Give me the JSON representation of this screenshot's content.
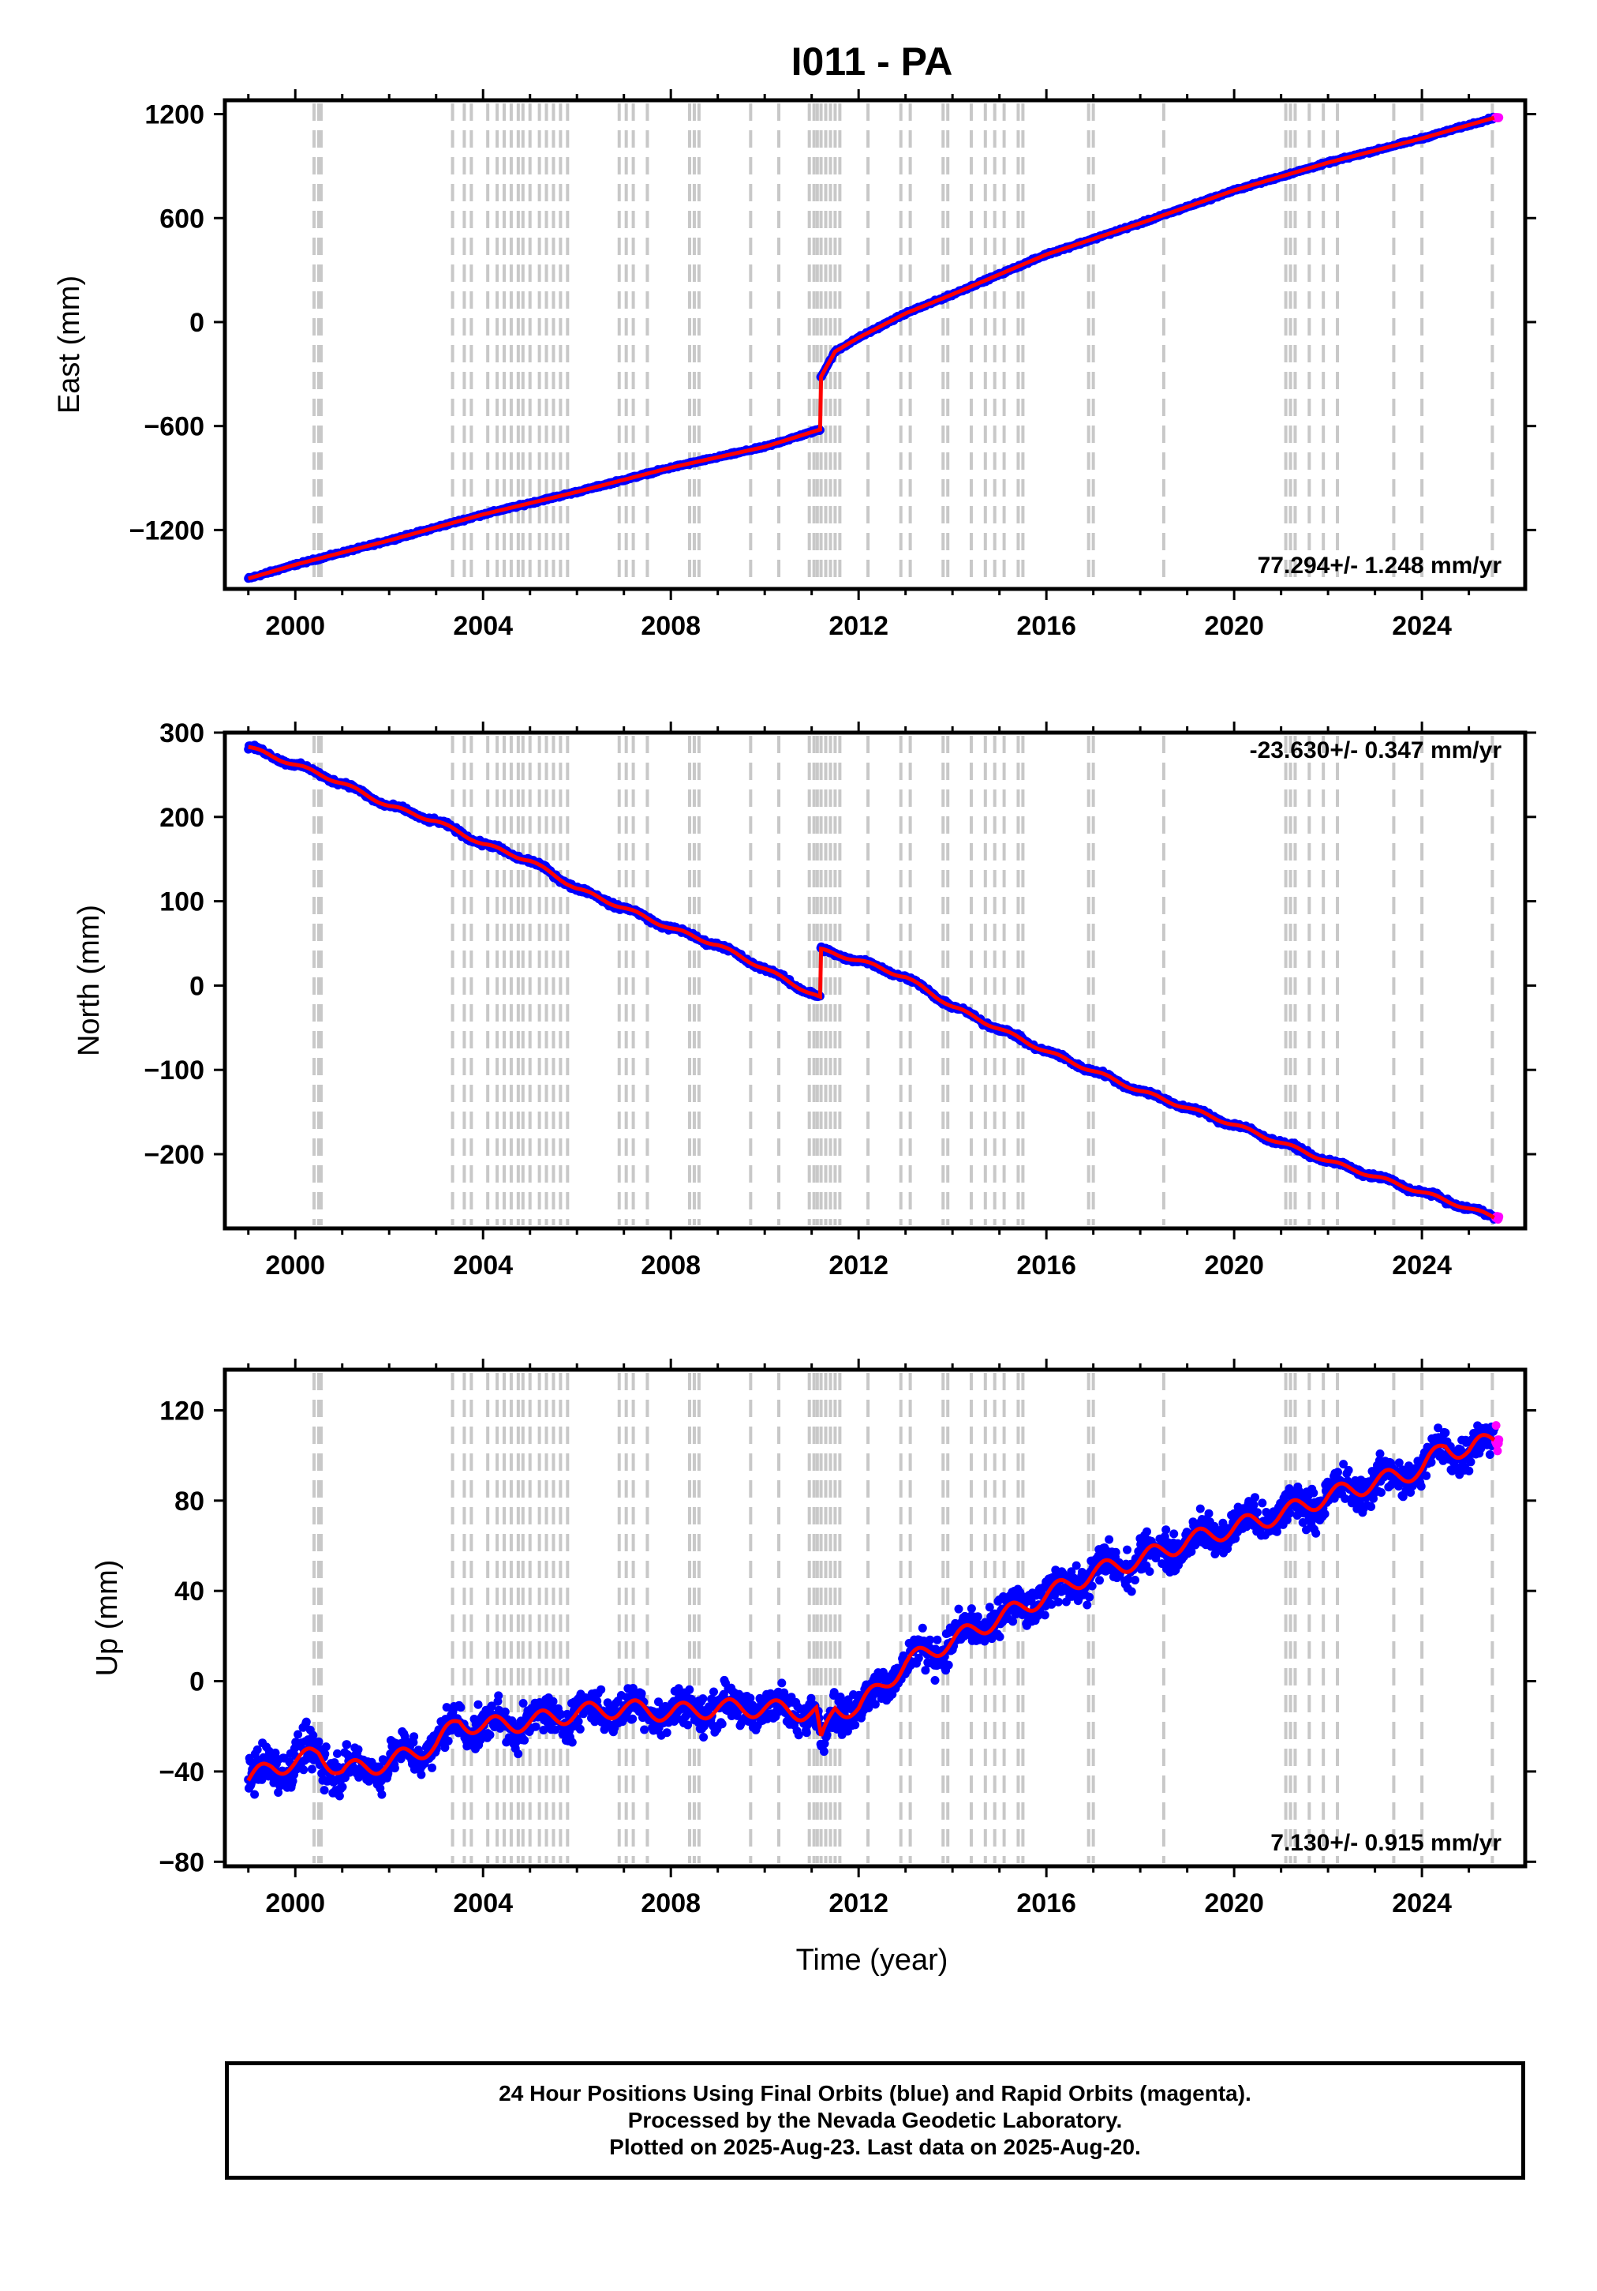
{
  "title": "I011 - PA",
  "x_axis_label": "Time (year)",
  "colors": {
    "final_orbits": "#0000ff",
    "rapid_orbits": "#ff00ff",
    "model": "#ff0000",
    "event_lines": "#c8c8c8",
    "frame": "#000000"
  },
  "footer": {
    "line1": "24 Hour Positions Using Final Orbits (blue) and Rapid Orbits (magenta).",
    "line2": "Processed by the Nevada Geodetic Laboratory.",
    "line3": "Plotted on 2025-Aug-23. Last data on 2025-Aug-20."
  },
  "event_lines_years": [
    2000.4,
    2000.5,
    2000.55,
    2003.35,
    2003.6,
    2003.75,
    2004.1,
    2004.3,
    2004.45,
    2004.6,
    2004.75,
    2004.85,
    2005.0,
    2005.2,
    2005.35,
    2005.5,
    2005.65,
    2005.8,
    2006.9,
    2007.05,
    2007.2,
    2007.5,
    2008.4,
    2008.5,
    2008.6,
    2009.7,
    2010.3,
    2010.95,
    2011.05,
    2011.12,
    2011.2,
    2011.3,
    2011.4,
    2011.5,
    2011.6,
    2012.2,
    2012.9,
    2013.1,
    2013.8,
    2013.9,
    2014.4,
    2014.7,
    2014.9,
    2015.1,
    2015.4,
    2015.5,
    2016.9,
    2017.0,
    2018.5,
    2021.1,
    2021.2,
    2021.3,
    2021.6,
    2021.9,
    2022.2,
    2023.4,
    2024.0,
    2025.5
  ],
  "chart_data": [
    {
      "type": "scatter",
      "panel": "east",
      "ylabel": "East (mm)",
      "ylim": [
        -1540,
        1280
      ],
      "xlim": [
        1998.5,
        2026.2
      ],
      "x_ticks": [
        "2000",
        "2004",
        "2008",
        "2012",
        "2016",
        "2020",
        "2024"
      ],
      "x_tick_values": [
        2000,
        2004,
        2008,
        2012,
        2016,
        2020,
        2024
      ],
      "y_ticks": [
        "1200",
        "600",
        "0",
        "−600",
        "−1200"
      ],
      "y_tick_values": [
        1200,
        600,
        0,
        -600,
        -1200
      ],
      "rate_label": "77.294+/- 1.248 mm/yr",
      "grid": false,
      "series": [
        {
          "name": "Final Orbits",
          "x": [
            1999.0,
            2000.0,
            2002.0,
            2004.0,
            2006.0,
            2008.0,
            2010.0,
            2011.18,
            2011.19,
            2011.5,
            2012.0,
            2013.0,
            2014.0,
            2016.0,
            2018.0,
            2020.0,
            2022.0,
            2024.0,
            2025.55
          ],
          "values": [
            -1480,
            -1400,
            -1260,
            -1110,
            -980,
            -840,
            -720,
            -620,
            -320,
            -170,
            -90,
            50,
            160,
            390,
            570,
            760,
            920,
            1060,
            1180
          ]
        }
      ]
    },
    {
      "type": "scatter",
      "panel": "north",
      "ylabel": "North (mm)",
      "ylim": [
        -288,
        300
      ],
      "xlim": [
        1998.5,
        2026.2
      ],
      "x_ticks": [
        "2000",
        "2004",
        "2008",
        "2012",
        "2016",
        "2020",
        "2024"
      ],
      "x_tick_values": [
        2000,
        2004,
        2008,
        2012,
        2016,
        2020,
        2024
      ],
      "y_ticks": [
        "300",
        "200",
        "100",
        "0",
        "−100",
        "−200"
      ],
      "y_tick_values": [
        300,
        200,
        100,
        0,
        -100,
        -200
      ],
      "rate_label": "-23.630+/- 0.347 mm/yr",
      "grid": false,
      "series": [
        {
          "name": "Final Orbits",
          "x": [
            1999.0,
            1999.5,
            2000.0,
            2001.0,
            2002.0,
            2003.0,
            2004.0,
            2005.0,
            2006.0,
            2007.0,
            2008.0,
            2009.0,
            2010.0,
            2011.18,
            2011.19,
            2012.0,
            2013.0,
            2014.0,
            2016.0,
            2018.0,
            2020.0,
            2022.0,
            2024.0,
            2025.55
          ],
          "values": [
            283,
            272,
            262,
            240,
            213,
            195,
            168,
            148,
            115,
            92,
            68,
            48,
            20,
            -15,
            42,
            30,
            10,
            -25,
            -78,
            -125,
            -165,
            -208,
            -245,
            -275
          ]
        }
      ]
    },
    {
      "type": "scatter",
      "panel": "up",
      "ylabel": "Up (mm)",
      "ylim": [
        -82,
        138
      ],
      "xlim": [
        1998.5,
        2026.2
      ],
      "x_ticks": [
        "2000",
        "2004",
        "2008",
        "2012",
        "2016",
        "2020",
        "2024"
      ],
      "x_tick_values": [
        2000,
        2004,
        2008,
        2012,
        2016,
        2020,
        2024
      ],
      "y_ticks": [
        "120",
        "80",
        "40",
        "0",
        "−40",
        "−80"
      ],
      "y_tick_values": [
        120,
        80,
        40,
        0,
        -40,
        -80
      ],
      "rate_label": "7.130+/- 0.915 mm/yr",
      "grid": false,
      "series": [
        {
          "name": "Final Orbits",
          "x": [
            1999.0,
            1999.5,
            2000.0,
            2000.5,
            2001.0,
            2002.0,
            2003.0,
            2003.5,
            2004.0,
            2005.0,
            2006.0,
            2007.0,
            2008.0,
            2009.0,
            2010.0,
            2011.1,
            2011.2,
            2011.5,
            2012.0,
            2012.5,
            2013.0,
            2014.0,
            2015.0,
            2016.0,
            2017.0,
            2018.0,
            2019.0,
            2020.0,
            2021.0,
            2022.0,
            2023.0,
            2024.0,
            2024.5,
            2025.0,
            2025.55
          ],
          "values": [
            -44,
            -38,
            -36,
            -32,
            -40,
            -36,
            -28,
            -18,
            -20,
            -18,
            -14,
            -12,
            -14,
            -12,
            -12,
            -14,
            -28,
            -12,
            -12,
            -2,
            8,
            18,
            28,
            38,
            48,
            54,
            62,
            68,
            74,
            82,
            88,
            94,
            104,
            102,
            108
          ]
        }
      ]
    }
  ]
}
